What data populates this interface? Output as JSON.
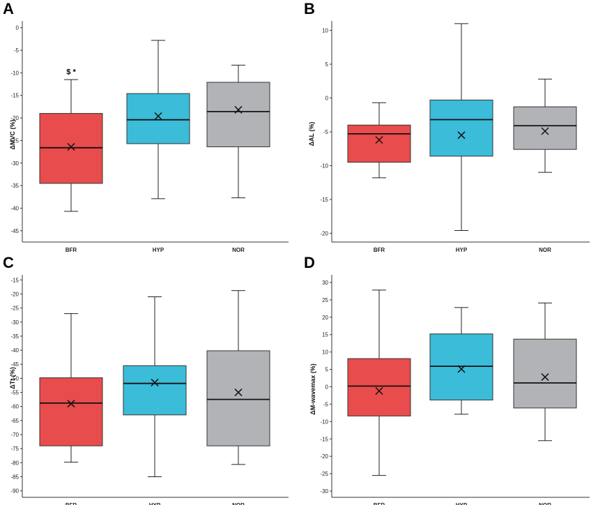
{
  "colors": {
    "BFR": "#e84c4c",
    "HYP": "#3bbcd9",
    "NOR": "#b2b3b6"
  },
  "chart_data": [
    {
      "type": "box",
      "panel": "A",
      "ylabel": "ΔMVC (%)",
      "categories": [
        "BFR",
        "HYP",
        "NOR"
      ],
      "ylim": [
        -47.5,
        1.5
      ],
      "yticks": [
        0,
        -5,
        -10,
        -15,
        -20,
        -25,
        -30,
        -35,
        -40,
        -45
      ],
      "boxes": [
        {
          "min": -40.7,
          "q1": -34.5,
          "median": -26.6,
          "q3": -19.0,
          "max": -11.5,
          "mean": -26.4
        },
        {
          "min": -37.9,
          "q1": -25.7,
          "median": -20.4,
          "q3": -14.6,
          "max": -2.8,
          "mean": -19.6
        },
        {
          "min": -37.7,
          "q1": -26.4,
          "median": -18.6,
          "q3": -12.1,
          "max": -8.3,
          "mean": -18.2
        }
      ],
      "annotation": {
        "text": "$ *",
        "category": "BFR",
        "y": -10.3
      }
    },
    {
      "type": "box",
      "panel": "B",
      "ylabel": "ΔAL (%)",
      "categories": [
        "BFR",
        "HYP",
        "NOR"
      ],
      "ylim": [
        -21.3,
        11.4
      ],
      "yticks": [
        10,
        5,
        0,
        -5,
        -10,
        -15,
        -20
      ],
      "boxes": [
        {
          "min": -11.8,
          "q1": -9.5,
          "median": -5.3,
          "q3": -4.0,
          "max": -0.7,
          "mean": -6.2
        },
        {
          "min": -19.6,
          "q1": -8.6,
          "median": -3.2,
          "q3": -0.3,
          "max": 11.0,
          "mean": -5.5
        },
        {
          "min": -11.0,
          "q1": -7.6,
          "median": -4.1,
          "q3": -1.3,
          "max": 2.8,
          "mean": -4.9
        }
      ]
    },
    {
      "type": "box",
      "panel": "C",
      "ylabel": "ΔTt (%)",
      "categories": [
        "BFR",
        "HYP",
        "NOR"
      ],
      "ylim": [
        -92.3,
        -13.2
      ],
      "yticks": [
        -15,
        -20,
        -25,
        -30,
        -35,
        -40,
        -45,
        -50,
        -55,
        -60,
        -65,
        -70,
        -75,
        -80,
        -85,
        -90
      ],
      "boxes": [
        {
          "min": -79.8,
          "q1": -74.0,
          "median": -58.8,
          "q3": -49.8,
          "max": -27.0,
          "mean": -59.0
        },
        {
          "min": -85.0,
          "q1": -63.0,
          "median": -51.8,
          "q3": -45.5,
          "max": -21.0,
          "mean": -51.5
        },
        {
          "min": -80.6,
          "q1": -74.0,
          "median": -57.5,
          "q3": -40.2,
          "max": -18.8,
          "mean": -55.0
        }
      ]
    },
    {
      "type": "box",
      "panel": "D",
      "ylabel": "ΔM-wavemax (%)",
      "categories": [
        "BFR",
        "HYP",
        "NOR"
      ],
      "ylim": [
        -31.8,
        32.2
      ],
      "yticks": [
        30,
        25,
        20,
        15,
        10,
        5,
        0,
        -5,
        -10,
        -15,
        -20,
        -25,
        -30
      ],
      "boxes": [
        {
          "min": -25.5,
          "q1": -8.4,
          "median": 0.2,
          "q3": 8.1,
          "max": 27.8,
          "mean": -1.2
        },
        {
          "min": -7.9,
          "q1": -3.8,
          "median": 5.9,
          "q3": 15.2,
          "max": 22.8,
          "mean": 5.1
        },
        {
          "min": -15.5,
          "q1": -6.1,
          "median": 1.1,
          "q3": 13.7,
          "max": 24.1,
          "mean": 2.8
        }
      ]
    }
  ]
}
